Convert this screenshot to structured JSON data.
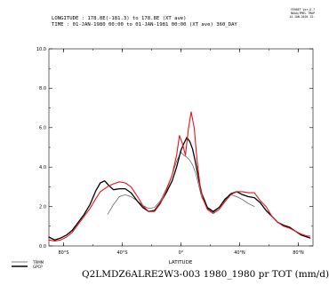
{
  "header": {
    "line1": "LONGITUDE : 178.8E(-181.3) to 178.8E (XT ave)",
    "line2": "TIME : 01-JAN-1980 00:00 to 01-JAN-1981 00:00 (XT ave) 360_DAY",
    "corner": [
      "FERRET Ver.6.7",
      "NOAA/PMEL TMAP",
      "14-JAN-2020 13:"
    ]
  },
  "caption": "Q2LMDZ6ALRE2W3-003 1980_1980 pr TOT (mm/d)",
  "colors": {
    "trmm": "#555555",
    "gpcp": "#000000",
    "model": "#e8141a"
  },
  "chart_data": {
    "type": "line",
    "xlabel": "LATITUDE",
    "ylabel": "",
    "xlim": [
      -90,
      90
    ],
    "ylim": [
      0,
      10
    ],
    "xticks": [
      -80,
      -40,
      0,
      40,
      80
    ],
    "xtick_labels": [
      "80°S",
      "40°S",
      "0°",
      "40°N",
      "80°N"
    ],
    "yticks": [
      0,
      2,
      4,
      6,
      8,
      10
    ],
    "ytick_labels": [
      "0.0",
      "2.0",
      "4.0",
      "6.0",
      "8.0",
      "10.0"
    ],
    "grid": false,
    "legend_position": "bottom-left",
    "series": [
      {
        "name": "TRMM",
        "color": "#555555",
        "x": [
          -50,
          -46,
          -42,
          -38,
          -34,
          -30,
          -26,
          -22,
          -18,
          -14,
          -10,
          -6,
          -3,
          0,
          2,
          4,
          6,
          8,
          10,
          12,
          14,
          18,
          22,
          26,
          30,
          34,
          38,
          42,
          46,
          50
        ],
        "y": [
          1.6,
          2.1,
          2.5,
          2.6,
          2.5,
          2.3,
          2.05,
          1.9,
          1.95,
          2.3,
          2.9,
          3.6,
          4.3,
          4.75,
          4.6,
          4.5,
          4.35,
          4.1,
          3.7,
          3.1,
          2.5,
          1.9,
          1.7,
          1.95,
          2.4,
          2.6,
          2.5,
          2.35,
          2.15,
          2.0
        ]
      },
      {
        "name": "GPCP",
        "color": "#000000",
        "x": [
          -90,
          -86,
          -82,
          -78,
          -74,
          -70,
          -66,
          -62,
          -58,
          -55,
          -52,
          -49,
          -46,
          -42,
          -38,
          -34,
          -30,
          -26,
          -22,
          -18,
          -14,
          -10,
          -6,
          -3,
          0,
          2,
          4,
          6,
          8,
          10,
          12,
          14,
          18,
          22,
          26,
          30,
          34,
          38,
          42,
          46,
          50,
          54,
          58,
          62,
          66,
          70,
          74,
          78,
          82,
          86,
          88
        ],
        "y": [
          0.45,
          0.3,
          0.4,
          0.55,
          0.8,
          1.2,
          1.6,
          2.1,
          2.8,
          3.2,
          3.3,
          3.05,
          2.85,
          2.9,
          2.9,
          2.7,
          2.3,
          1.95,
          1.75,
          1.8,
          2.2,
          2.7,
          3.3,
          4.0,
          4.85,
          5.2,
          5.5,
          5.3,
          4.9,
          4.2,
          3.4,
          2.7,
          1.95,
          1.75,
          1.95,
          2.35,
          2.65,
          2.75,
          2.6,
          2.5,
          2.45,
          2.2,
          1.8,
          1.5,
          1.2,
          1.05,
          0.95,
          0.75,
          0.55,
          0.45,
          0.4
        ]
      },
      {
        "name": "Q2LMDZ6ALRE2W3-003",
        "color": "#e8141a",
        "x": [
          -90,
          -86,
          -82,
          -78,
          -74,
          -70,
          -66,
          -62,
          -58,
          -55,
          -52,
          -49,
          -46,
          -42,
          -38,
          -34,
          -30,
          -26,
          -22,
          -18,
          -14,
          -10,
          -6,
          -3,
          -1,
          1,
          3,
          5,
          7,
          9,
          11,
          13,
          15,
          18,
          22,
          26,
          30,
          34,
          38,
          42,
          46,
          50,
          54,
          58,
          62,
          66,
          70,
          74,
          78,
          82,
          86,
          88
        ],
        "y": [
          0.3,
          0.25,
          0.3,
          0.45,
          0.7,
          1.1,
          1.5,
          1.9,
          2.4,
          2.75,
          2.9,
          3.05,
          3.15,
          3.25,
          3.2,
          3.0,
          2.55,
          2.05,
          1.75,
          1.75,
          2.15,
          2.8,
          3.6,
          4.6,
          5.6,
          5.2,
          4.6,
          5.9,
          6.8,
          6.0,
          4.3,
          3.1,
          2.4,
          1.85,
          1.65,
          1.85,
          2.25,
          2.6,
          2.75,
          2.75,
          2.7,
          2.7,
          2.3,
          2.0,
          1.5,
          1.2,
          1.0,
          0.9,
          0.75,
          0.6,
          0.5,
          0.5
        ]
      }
    ]
  }
}
